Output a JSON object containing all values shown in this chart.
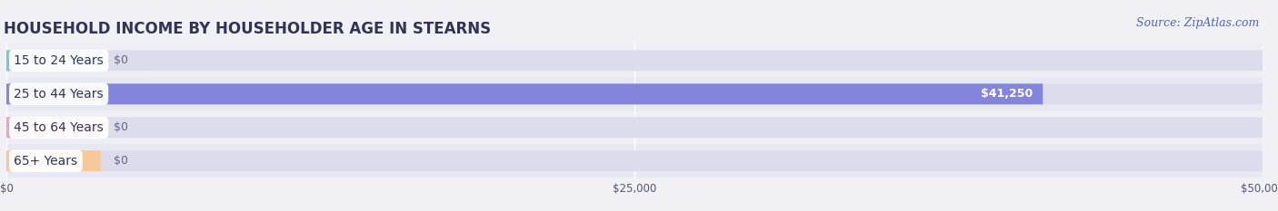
{
  "title": "HOUSEHOLD INCOME BY HOUSEHOLDER AGE IN STEARNS",
  "source": "Source: ZipAtlas.com",
  "categories": [
    "15 to 24 Years",
    "25 to 44 Years",
    "45 to 64 Years",
    "65+ Years"
  ],
  "values": [
    0,
    41250,
    0,
    0
  ],
  "bar_colors": [
    "#72cdc9",
    "#8484dd",
    "#f4a0bc",
    "#f7c99a"
  ],
  "xlim": [
    0,
    50000
  ],
  "xticks": [
    0,
    25000,
    50000
  ],
  "xtick_labels": [
    "$0",
    "$25,000",
    "$50,000"
  ],
  "row_bg_colors": [
    "#ebebf2",
    "#e2e2ee"
  ],
  "bar_bg_color": "#dcdcec",
  "title_fontsize": 12,
  "label_fontsize": 10,
  "value_label_fontsize": 9,
  "source_fontsize": 9,
  "background_color": "#f0f0f5"
}
